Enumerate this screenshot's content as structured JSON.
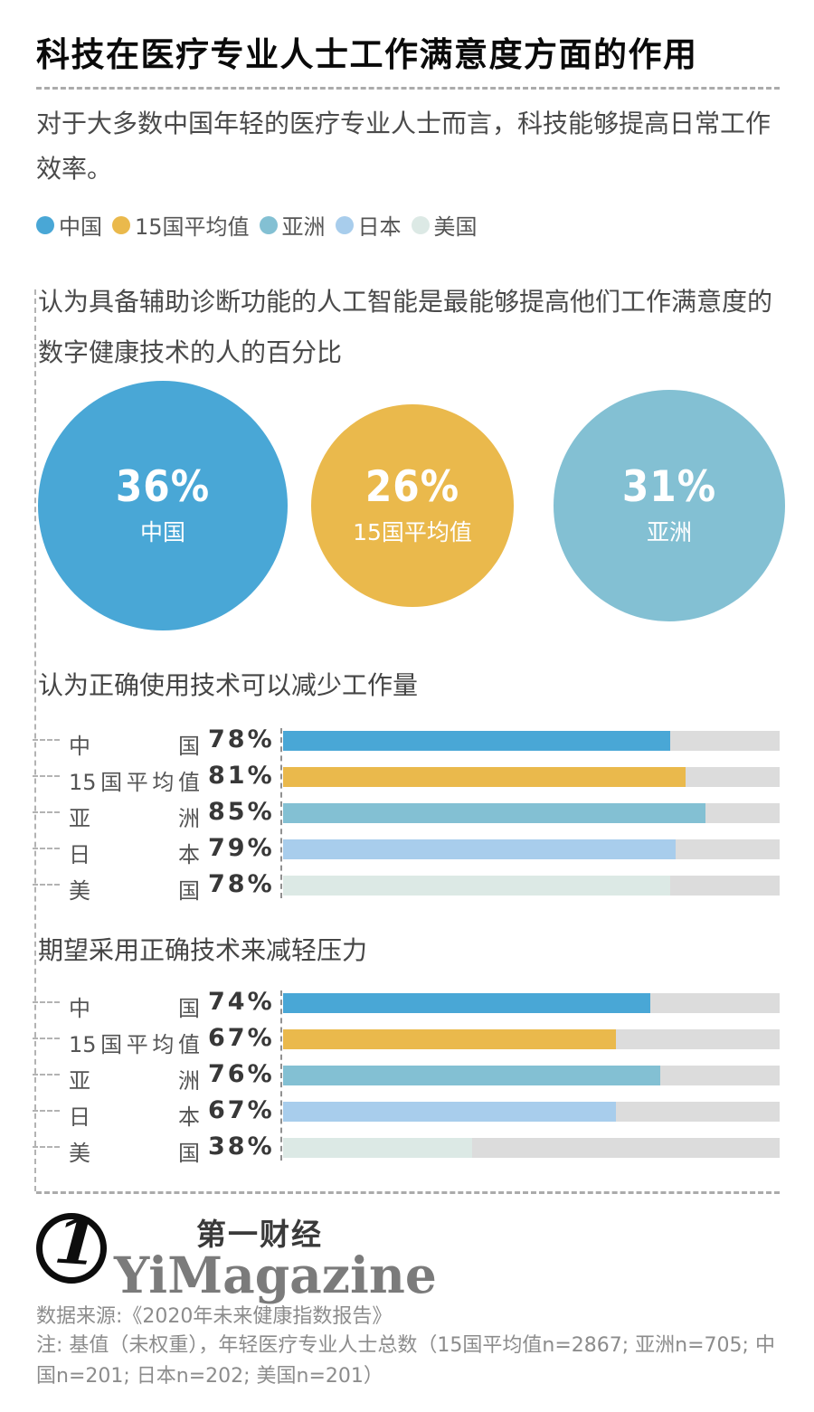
{
  "header": {
    "title": "科技在医疗专业人士工作满意度方面的作用",
    "subtitle": "对于大多数中国年轻的医疗专业人士而言，科技能够提高日常工作效率。"
  },
  "colors": {
    "china": "#49A7D6",
    "avg15": "#EAB94C",
    "asia": "#83C0D3",
    "japan": "#A8CDEC",
    "usa": "#DCE9E5",
    "track": "#DCDCDC",
    "dashed_line": "#B3B3B3"
  },
  "legend": {
    "items": [
      {
        "label": "中国",
        "color": "#49A7D6"
      },
      {
        "label": "15国平均值",
        "color": "#EAB94C"
      },
      {
        "label": "亚洲",
        "color": "#83C0D3"
      },
      {
        "label": "日本",
        "color": "#A8CDEC"
      },
      {
        "label": "美国",
        "color": "#DCE9E5"
      }
    ]
  },
  "chart_data": [
    {
      "type": "bubble",
      "title": "认为具备辅助诊断功能的人工智能是最能够提高他们工作满意度的数字健康技术的人的百分比",
      "unit": "%",
      "points": [
        {
          "label": "中国",
          "value": 36,
          "display": "36%",
          "color": "#49A7D6"
        },
        {
          "label": "15国平均值",
          "value": 26,
          "display": "26%",
          "color": "#EAB94C"
        },
        {
          "label": "亚洲",
          "value": 31,
          "display": "31%",
          "color": "#83C0D3"
        }
      ]
    },
    {
      "type": "bar",
      "title": "认为正确使用技术可以减少工作量",
      "unit": "%",
      "xlim": [
        0,
        100
      ],
      "categories": [
        "中国",
        "15国平均值",
        "亚洲",
        "日本",
        "美国"
      ],
      "values": [
        78,
        81,
        85,
        79,
        78
      ],
      "rows": [
        {
          "label": "中国",
          "value": 78,
          "display": "78%",
          "color": "#49A7D6"
        },
        {
          "label": "15国平均值",
          "value": 81,
          "display": "81%",
          "color": "#EAB94C"
        },
        {
          "label": "亚洲",
          "value": 85,
          "display": "85%",
          "color": "#83C0D3"
        },
        {
          "label": "日本",
          "value": 79,
          "display": "79%",
          "color": "#A8CDEC"
        },
        {
          "label": "美国",
          "value": 78,
          "display": "78%",
          "color": "#DCE9E5"
        }
      ]
    },
    {
      "type": "bar",
      "title": "期望采用正确技术来减轻压力",
      "unit": "%",
      "xlim": [
        0,
        100
      ],
      "categories": [
        "中国",
        "15国平均值",
        "亚洲",
        "日本",
        "美国"
      ],
      "values": [
        74,
        67,
        76,
        67,
        38
      ],
      "rows": [
        {
          "label": "中国",
          "value": 74,
          "display": "74%",
          "color": "#49A7D6"
        },
        {
          "label": "15国平均值",
          "value": 67,
          "display": "67%",
          "color": "#EAB94C"
        },
        {
          "label": "亚洲",
          "value": 76,
          "display": "76%",
          "color": "#83C0D3"
        },
        {
          "label": "日本",
          "value": 67,
          "display": "67%",
          "color": "#A8CDEC"
        },
        {
          "label": "美国",
          "value": 38,
          "display": "38%",
          "color": "#DCE9E5"
        }
      ]
    }
  ],
  "footer": {
    "logo_numeral": "1",
    "brand_cn": "第一财经",
    "brand_en": "YiMagazine",
    "source": "数据来源:《2020年未来健康指数报告》",
    "note": "注: 基值（未权重），年轻医疗专业人士总数（15国平均值n=2867; 亚洲n=705; 中国n=201; 日本n=202; 美国n=201）"
  }
}
